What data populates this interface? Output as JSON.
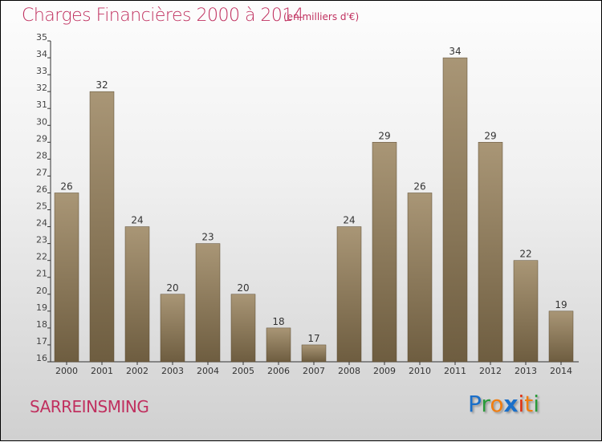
{
  "chart_data": {
    "type": "bar",
    "title": "Charges Financières 2000 à 2014",
    "subtitle": "(en milliers d'€)",
    "categories": [
      "2000",
      "2001",
      "2002",
      "2003",
      "2004",
      "2005",
      "2006",
      "2007",
      "2008",
      "2009",
      "2010",
      "2011",
      "2012",
      "2013",
      "2014"
    ],
    "values": [
      26,
      32,
      24,
      20,
      23,
      20,
      18,
      17,
      24,
      29,
      26,
      34,
      29,
      22,
      19
    ],
    "ylim": [
      16,
      35
    ],
    "yticks": [
      16,
      17,
      18,
      19,
      20,
      21,
      22,
      23,
      24,
      25,
      26,
      27,
      28,
      29,
      30,
      31,
      32,
      33,
      34,
      35
    ],
    "xlabel": "",
    "ylabel": "",
    "bar_color": "#8b7757"
  },
  "footer": {
    "city": "SARREINSMING",
    "logo": "Proxiti"
  },
  "colors": {
    "title": "#c0305f"
  }
}
